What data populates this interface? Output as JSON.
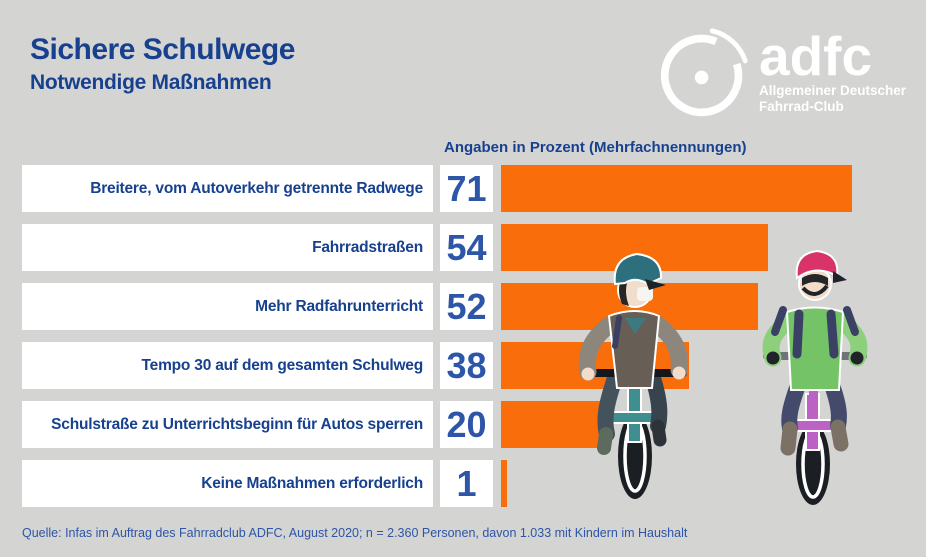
{
  "header": {
    "title": "Sichere Schulwege",
    "subtitle": "Notwendige Maßnahmen"
  },
  "logo": {
    "wordmark": "adfc",
    "tagline1": "Allgemeiner Deutscher",
    "tagline2": "Fahrrad-Club",
    "icon": "adfc-wheel-icon",
    "color": "#ffffff"
  },
  "chart_data": {
    "type": "bar",
    "orientation": "horizontal",
    "title": "Angaben in Prozent (Mehrfachnennungen)",
    "unit": "percent",
    "categories": [
      "Breitere, vom Autoverkehr getrennte Radwege",
      "Fahrradstraßen",
      "Mehr Radfahrunterricht",
      "Tempo 30 auf dem gesamten Schulweg",
      "Schulstraße zu Unterrichtsbeginn für Autos sperren",
      "Keine Maßnahmen erforderlich"
    ],
    "values": [
      71,
      54,
      52,
      38,
      20,
      1
    ],
    "xlim": [
      0,
      100
    ],
    "grid": false,
    "legend": "none",
    "bar_color": "#f96e0a",
    "value_color": "#2d55a8",
    "label_color": "#17418f"
  },
  "footer": {
    "source": "Quelle: Infas im Auftrag des Fahrradclub ADFC, August 2020; n = 2.360 Personen, davon 1.033 mit Kindern im Haushalt"
  },
  "colors": {
    "background": "#d4d4d3",
    "navy": "#17418f",
    "blue": "#2d55a8",
    "orange": "#f96e0a",
    "box_white": "#ffffff"
  },
  "illustration": {
    "name": "two-children-cycling-illustration"
  }
}
